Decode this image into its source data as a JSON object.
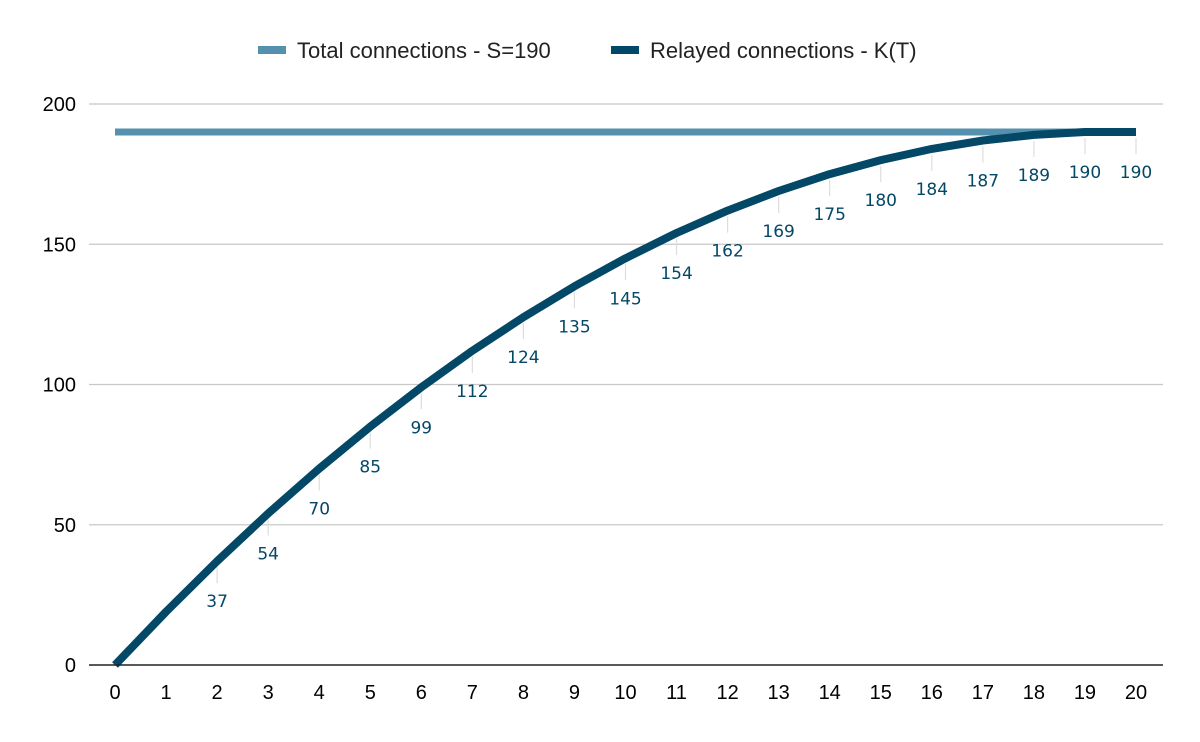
{
  "chart_data": {
    "type": "line",
    "title": "",
    "xlabel": "",
    "ylabel": "",
    "x": [
      0,
      1,
      2,
      3,
      4,
      5,
      6,
      7,
      8,
      9,
      10,
      11,
      12,
      13,
      14,
      15,
      16,
      17,
      18,
      19,
      20
    ],
    "series": [
      {
        "name": "Total connections - S=190",
        "color": "#5591ae",
        "values": [
          190,
          190,
          190,
          190,
          190,
          190,
          190,
          190,
          190,
          190,
          190,
          190,
          190,
          190,
          190,
          190,
          190,
          190,
          190,
          190,
          190
        ]
      },
      {
        "name": "Relayed connections - K(T)",
        "color": "#034866",
        "values": [
          0,
          19,
          37,
          54,
          70,
          85,
          99,
          112,
          124,
          135,
          145,
          154,
          162,
          169,
          175,
          180,
          184,
          187,
          189,
          190,
          190
        ]
      }
    ],
    "data_labels": [
      {
        "x": 2,
        "text": "37"
      },
      {
        "x": 3,
        "text": "54"
      },
      {
        "x": 4,
        "text": "70"
      },
      {
        "x": 5,
        "text": "85"
      },
      {
        "x": 6,
        "text": "99"
      },
      {
        "x": 7,
        "text": "112"
      },
      {
        "x": 8,
        "text": "124"
      },
      {
        "x": 9,
        "text": "135"
      },
      {
        "x": 10,
        "text": "145"
      },
      {
        "x": 11,
        "text": "154"
      },
      {
        "x": 12,
        "text": "162"
      },
      {
        "x": 13,
        "text": "169"
      },
      {
        "x": 14,
        "text": "175"
      },
      {
        "x": 15,
        "text": "180"
      },
      {
        "x": 16,
        "text": "184"
      },
      {
        "x": 17,
        "text": "187"
      },
      {
        "x": 18,
        "text": "189"
      },
      {
        "x": 19,
        "text": "190"
      },
      {
        "x": 20,
        "text": "190"
      }
    ],
    "xlim": [
      0,
      20
    ],
    "ylim": [
      0,
      200
    ],
    "y_ticks": [
      0,
      50,
      100,
      150,
      200
    ],
    "x_ticks": [
      0,
      1,
      2,
      3,
      4,
      5,
      6,
      7,
      8,
      9,
      10,
      11,
      12,
      13,
      14,
      15,
      16,
      17,
      18,
      19,
      20
    ],
    "grid": "horizontal",
    "legend_position": "top-center",
    "label_color": "#034866"
  }
}
